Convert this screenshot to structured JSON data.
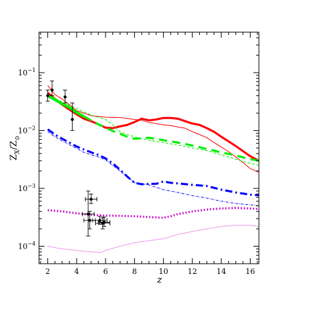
{
  "chart_data": {
    "type": "line",
    "title": "",
    "xlabel": "z",
    "ylabel": {
      "main": "Z",
      "sub_main": "X",
      "sep": "/Z",
      "sub_ref": "⊙"
    },
    "xlim": [
      1.4,
      16.6
    ],
    "ylim": [
      5e-05,
      0.5
    ],
    "yscale": "log",
    "grid": false,
    "legend": "none",
    "x_ticks": [
      2,
      4,
      6,
      8,
      10,
      12,
      14,
      16
    ],
    "y_ticks": [
      {
        "value": 0.0001,
        "base": "10",
        "exp": "−4"
      },
      {
        "value": 0.001,
        "base": "10",
        "exp": "−3"
      },
      {
        "value": 0.01,
        "base": "10",
        "exp": "−2"
      },
      {
        "value": 0.1,
        "base": "10",
        "exp": "−1"
      }
    ],
    "series": [
      {
        "color": "#ff0000",
        "style": "solid",
        "width": 3,
        "points": [
          [
            2.0,
            0.045
          ],
          [
            2.5,
            0.035
          ],
          [
            3.0,
            0.028
          ],
          [
            3.5,
            0.023
          ],
          [
            4.0,
            0.019
          ],
          [
            4.5,
            0.016
          ],
          [
            5.0,
            0.0145
          ],
          [
            5.5,
            0.0128
          ],
          [
            6.0,
            0.0112
          ],
          [
            6.5,
            0.011
          ],
          [
            7.0,
            0.0118
          ],
          [
            7.5,
            0.0125
          ],
          [
            8.0,
            0.014
          ],
          [
            8.5,
            0.016
          ],
          [
            9.0,
            0.015
          ],
          [
            9.5,
            0.0155
          ],
          [
            10.0,
            0.0165
          ],
          [
            10.5,
            0.0165
          ],
          [
            11.0,
            0.016
          ],
          [
            11.5,
            0.0145
          ],
          [
            12.0,
            0.0132
          ],
          [
            12.5,
            0.0125
          ],
          [
            13.0,
            0.011
          ],
          [
            13.5,
            0.0095
          ],
          [
            14.0,
            0.0078
          ],
          [
            14.5,
            0.0065
          ],
          [
            15.0,
            0.0054
          ],
          [
            15.5,
            0.0044
          ],
          [
            16.0,
            0.0036
          ],
          [
            16.6,
            0.003
          ]
        ]
      },
      {
        "color": "#ff0000",
        "style": "solid",
        "width": 1,
        "points": [
          [
            2.0,
            0.06
          ],
          [
            2.5,
            0.042
          ],
          [
            3.0,
            0.035
          ],
          [
            3.5,
            0.028
          ],
          [
            4.0,
            0.022
          ],
          [
            4.5,
            0.02
          ],
          [
            5.0,
            0.018
          ],
          [
            5.5,
            0.0175
          ],
          [
            6.0,
            0.017
          ],
          [
            7.0,
            0.0168
          ],
          [
            8.0,
            0.0155
          ],
          [
            8.5,
            0.015
          ],
          [
            9.0,
            0.0138
          ],
          [
            9.5,
            0.0132
          ],
          [
            10.0,
            0.0125
          ],
          [
            10.5,
            0.0122
          ],
          [
            11.0,
            0.0115
          ],
          [
            11.5,
            0.011
          ],
          [
            12.0,
            0.0095
          ],
          [
            12.5,
            0.0085
          ],
          [
            13.0,
            0.0075
          ],
          [
            13.5,
            0.0062
          ],
          [
            14.0,
            0.0052
          ],
          [
            14.5,
            0.0043
          ],
          [
            15.0,
            0.0035
          ],
          [
            15.5,
            0.0028
          ],
          [
            16.0,
            0.0022
          ],
          [
            16.6,
            0.0019
          ]
        ]
      },
      {
        "color": "#00ee00",
        "style": "solid",
        "width": 4,
        "points": [
          [
            2.0,
            0.04
          ],
          [
            2.5,
            0.034
          ],
          [
            3.0,
            0.029
          ],
          [
            3.5,
            0.025
          ],
          [
            4.0,
            0.0205
          ],
          [
            4.5,
            0.0175
          ]
        ]
      },
      {
        "color": "#00ee00",
        "style": "dashed",
        "width": 3,
        "points": [
          [
            4.5,
            0.0175
          ],
          [
            5.0,
            0.015
          ],
          [
            5.5,
            0.0128
          ],
          [
            6.0,
            0.0112
          ],
          [
            6.5,
            0.0098
          ],
          [
            7.0,
            0.0088
          ],
          [
            7.5,
            0.0078
          ],
          [
            8.0,
            0.0072
          ],
          [
            9.0,
            0.0075
          ],
          [
            10.0,
            0.0068
          ],
          [
            11.0,
            0.0062
          ],
          [
            12.0,
            0.0055
          ],
          [
            13.0,
            0.0048
          ],
          [
            14.0,
            0.0042
          ],
          [
            15.0,
            0.0037
          ],
          [
            16.0,
            0.0032
          ],
          [
            16.6,
            0.003
          ]
        ]
      },
      {
        "color": "#00ee00",
        "style": "dashed",
        "width": 1,
        "points": [
          [
            2.0,
            0.042
          ],
          [
            3.0,
            0.031
          ],
          [
            4.0,
            0.024
          ],
          [
            5.0,
            0.0185
          ],
          [
            5.5,
            0.017
          ],
          [
            6.0,
            0.0155
          ],
          [
            6.5,
            0.0125
          ],
          [
            7.0,
            0.0095
          ],
          [
            7.5,
            0.0085
          ],
          [
            8.0,
            0.0078
          ],
          [
            8.5,
            0.0072
          ],
          [
            9.0,
            0.0068
          ],
          [
            10.0,
            0.0062
          ],
          [
            11.0,
            0.0056
          ],
          [
            12.0,
            0.005
          ],
          [
            13.0,
            0.0045
          ],
          [
            14.0,
            0.0038
          ],
          [
            15.0,
            0.0032
          ],
          [
            16.0,
            0.0027
          ],
          [
            16.6,
            0.0025
          ]
        ]
      },
      {
        "color": "#0000ff",
        "style": "dashdot",
        "width": 3,
        "points": [
          [
            2.0,
            0.0105
          ],
          [
            2.5,
            0.0085
          ],
          [
            3.0,
            0.0072
          ],
          [
            3.5,
            0.0062
          ],
          [
            4.0,
            0.0053
          ],
          [
            4.5,
            0.0047
          ],
          [
            5.0,
            0.0042
          ],
          [
            5.5,
            0.0038
          ],
          [
            6.0,
            0.0033
          ],
          [
            6.5,
            0.0027
          ],
          [
            7.0,
            0.0021
          ],
          [
            7.5,
            0.0016
          ],
          [
            8.0,
            0.00125
          ],
          [
            8.5,
            0.00118
          ],
          [
            9.0,
            0.0012
          ],
          [
            9.5,
            0.0012
          ],
          [
            10.0,
            0.00132
          ],
          [
            10.5,
            0.00125
          ],
          [
            11.0,
            0.00122
          ],
          [
            12.0,
            0.00115
          ],
          [
            13.0,
            0.0011
          ],
          [
            14.0,
            0.00095
          ],
          [
            15.0,
            0.00085
          ],
          [
            16.0,
            0.00078
          ],
          [
            16.6,
            0.00076
          ]
        ]
      },
      {
        "color": "#0000ff",
        "style": "dashdot",
        "width": 1,
        "points": [
          [
            2.0,
            0.0095
          ],
          [
            2.5,
            0.0078
          ],
          [
            3.0,
            0.0066
          ],
          [
            3.5,
            0.0057
          ],
          [
            4.0,
            0.0049
          ],
          [
            4.5,
            0.0042
          ],
          [
            5.0,
            0.0038
          ],
          [
            5.5,
            0.0035
          ],
          [
            6.0,
            0.0031
          ],
          [
            6.5,
            0.0025
          ],
          [
            7.0,
            0.002
          ],
          [
            7.5,
            0.0016
          ],
          [
            8.0,
            0.00125
          ],
          [
            8.5,
            0.0012
          ],
          [
            9.0,
            0.00115
          ],
          [
            10.0,
            0.00095
          ],
          [
            11.0,
            0.00085
          ],
          [
            12.0,
            0.00075
          ],
          [
            13.0,
            0.00068
          ],
          [
            14.0,
            0.0006
          ],
          [
            15.0,
            0.00055
          ],
          [
            16.0,
            0.00052
          ],
          [
            16.6,
            0.0005
          ]
        ]
      },
      {
        "color": "#cc00cc",
        "style": "dotted",
        "width": 3,
        "points": [
          [
            2.0,
            0.00042
          ],
          [
            3.0,
            0.0004
          ],
          [
            4.0,
            0.00037
          ],
          [
            5.0,
            0.00035
          ],
          [
            6.0,
            0.00034
          ],
          [
            7.0,
            0.000335
          ],
          [
            8.0,
            0.00033
          ],
          [
            9.0,
            0.00032
          ],
          [
            10.0,
            0.00031
          ],
          [
            10.5,
            0.00033
          ],
          [
            11.0,
            0.00036
          ],
          [
            12.0,
            0.0004
          ],
          [
            13.0,
            0.00043
          ],
          [
            14.0,
            0.00045
          ],
          [
            15.0,
            0.00046
          ],
          [
            16.0,
            0.00045
          ],
          [
            16.6,
            0.00044
          ]
        ]
      },
      {
        "color": "#cc00cc",
        "style": "dotted",
        "width": 1,
        "points": [
          [
            2.0,
            0.0001
          ],
          [
            3.0,
            9e-05
          ],
          [
            4.0,
            8.5e-05
          ],
          [
            5.0,
            8e-05
          ],
          [
            5.7,
            7.8e-05
          ],
          [
            6.0,
            8.5e-05
          ],
          [
            7.0,
            0.0001
          ],
          [
            8.0,
            0.000115
          ],
          [
            9.0,
            0.000125
          ],
          [
            10.0,
            0.000135
          ],
          [
            11.0,
            0.00016
          ],
          [
            12.0,
            0.00018
          ],
          [
            13.0,
            0.0002
          ],
          [
            14.0,
            0.00022
          ],
          [
            15.0,
            0.00023
          ],
          [
            16.0,
            0.00023
          ],
          [
            16.6,
            0.00022
          ]
        ]
      }
    ],
    "observations": [
      {
        "x": 2.0,
        "y": 0.04,
        "xerr": 0.0,
        "ylo": 0.032,
        "yhi": 0.05
      },
      {
        "x": 2.3,
        "y": 0.05,
        "xerr": 0.0,
        "ylo": 0.04,
        "yhi": 0.072
      },
      {
        "x": 3.2,
        "y": 0.038,
        "xerr": 0.0,
        "ylo": 0.03,
        "yhi": 0.05
      },
      {
        "x": 3.7,
        "y": 0.0155,
        "xerr": 0.0,
        "ylo": 0.01,
        "yhi": 0.03
      },
      {
        "x": 5.0,
        "y": 0.00065,
        "xerr": 0.4,
        "ylo": 0.00055,
        "yhi": 0.0008
      },
      {
        "x": 4.8,
        "y": 0.00036,
        "xerr": 0.4,
        "ylo": 0.00015,
        "yhi": 0.0009
      },
      {
        "x": 4.9,
        "y": 0.00028,
        "xerr": 0.4,
        "ylo": 0.0002,
        "yhi": 0.0004
      },
      {
        "x": 5.6,
        "y": 0.00028,
        "xerr": 0.5,
        "ylo": 0.00024,
        "yhi": 0.00033
      },
      {
        "x": 5.8,
        "y": 0.00025,
        "xerr": 0.5,
        "ylo": 0.0002,
        "yhi": 0.00031
      },
      {
        "x": 5.9,
        "y": 0.00026,
        "xerr": 0.4,
        "ylo": 0.00022,
        "yhi": 0.00032
      }
    ]
  }
}
